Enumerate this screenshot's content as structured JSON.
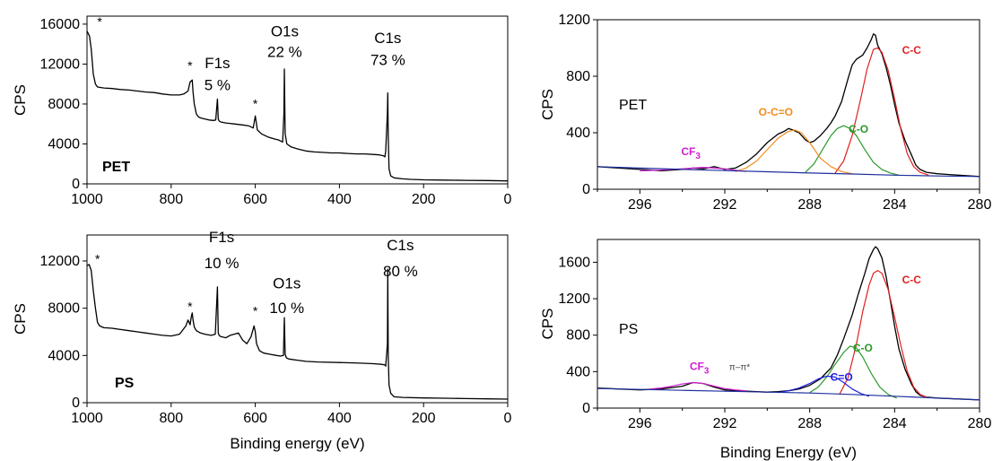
{
  "chart_data": [
    {
      "id": "survey_pet",
      "type": "line",
      "xlabel": "",
      "ylabel": "CPS",
      "xlim": [
        1000,
        0
      ],
      "ylim": [
        0,
        16800
      ],
      "xticks": [
        1000,
        800,
        600,
        400,
        200,
        0
      ],
      "yticks": [
        0,
        4000,
        8000,
        12000,
        16000
      ],
      "sample_label": "PET",
      "series": [
        {
          "color": "#000000",
          "x": [
            1000,
            994,
            990,
            985,
            980,
            975,
            960,
            940,
            920,
            900,
            880,
            860,
            840,
            820,
            800,
            780,
            770,
            760,
            755,
            750,
            748,
            745,
            740,
            735,
            730,
            720,
            710,
            700,
            694,
            690,
            688,
            686,
            682,
            670,
            650,
            630,
            615,
            605,
            600,
            595,
            585,
            570,
            555,
            545,
            535,
            532,
            531,
            529,
            525,
            515,
            500,
            480,
            460,
            440,
            420,
            400,
            380,
            360,
            340,
            320,
            305,
            295,
            292,
            290,
            286,
            285,
            284,
            282,
            278,
            270,
            250,
            230,
            200,
            150,
            100,
            50,
            0
          ],
          "y": [
            15300,
            14800,
            13500,
            11000,
            10000,
            9700,
            9600,
            9550,
            9450,
            9400,
            9300,
            9200,
            9150,
            9000,
            8900,
            8900,
            9000,
            9300,
            10200,
            10400,
            9200,
            8000,
            7000,
            6700,
            6600,
            6500,
            6400,
            6350,
            6400,
            8500,
            6500,
            6300,
            6200,
            6100,
            6000,
            5900,
            5800,
            5600,
            6800,
            5400,
            5000,
            4700,
            4500,
            4400,
            4200,
            7000,
            11500,
            5000,
            4000,
            3700,
            3500,
            3300,
            3200,
            3150,
            3100,
            3100,
            3050,
            3000,
            3000,
            2950,
            2900,
            2800,
            2700,
            3300,
            7200,
            9100,
            4800,
            1500,
            800,
            600,
            500,
            450,
            400,
            380,
            350,
            330,
            300
          ]
        }
      ],
      "annotations": [
        {
          "text": "*",
          "x": 970,
          "y": 15800
        },
        {
          "text": "*",
          "x": 755,
          "y": 11400
        },
        {
          "text": "*",
          "x": 600,
          "y": 7600
        },
        {
          "text": "F1s",
          "x": 690,
          "y": 11600
        },
        {
          "text": "5 %",
          "x": 690,
          "y": 9400
        },
        {
          "text": "O1s",
          "x": 530,
          "y": 14800
        },
        {
          "text": "22 %",
          "x": 530,
          "y": 12700
        },
        {
          "text": "C1s",
          "x": 285,
          "y": 14100
        },
        {
          "text": "73 %",
          "x": 285,
          "y": 11900
        }
      ]
    },
    {
      "id": "survey_ps",
      "type": "line",
      "xlabel": "Binding energy (eV)",
      "ylabel": "CPS",
      "xlim": [
        1000,
        0
      ],
      "ylim": [
        0,
        14200
      ],
      "xticks": [
        1000,
        800,
        600,
        400,
        200,
        0
      ],
      "yticks": [
        0,
        4000,
        8000,
        12000
      ],
      "sample_label": "PS",
      "series": [
        {
          "color": "#000000",
          "x": [
            1000,
            995,
            990,
            985,
            980,
            975,
            970,
            960,
            940,
            920,
            900,
            880,
            860,
            840,
            820,
            800,
            780,
            765,
            760,
            755,
            752,
            750,
            748,
            745,
            740,
            730,
            720,
            705,
            695,
            690,
            688,
            686,
            682,
            670,
            660,
            650,
            640,
            630,
            620,
            610,
            603,
            600,
            597,
            590,
            580,
            565,
            550,
            540,
            533,
            531,
            529,
            526,
            520,
            500,
            480,
            450,
            400,
            350,
            320,
            300,
            292,
            290,
            286,
            285,
            284,
            282,
            278,
            270,
            250,
            200,
            150,
            100,
            50,
            0
          ],
          "y": [
            11600,
            11700,
            11200,
            9500,
            8000,
            6800,
            6500,
            6350,
            6300,
            6200,
            6100,
            6000,
            5900,
            5800,
            5700,
            5650,
            5800,
            6500,
            7000,
            6600,
            7300,
            7600,
            7000,
            6400,
            6100,
            5900,
            5800,
            5700,
            5800,
            9800,
            5900,
            5700,
            5600,
            5500,
            5700,
            5800,
            5900,
            5300,
            5000,
            5600,
            6500,
            6000,
            5000,
            4400,
            4200,
            4100,
            4000,
            3950,
            4000,
            7200,
            4100,
            3800,
            3700,
            3600,
            3500,
            3450,
            3400,
            3350,
            3300,
            3250,
            3200,
            3100,
            5000,
            11300,
            4000,
            1500,
            800,
            500,
            450,
            400,
            380,
            350,
            330,
            300
          ]
        }
      ],
      "annotations": [
        {
          "text": "*",
          "x": 975,
          "y": 11800
        },
        {
          "text": "*",
          "x": 755,
          "y": 7800
        },
        {
          "text": "*",
          "x": 600,
          "y": 7400
        },
        {
          "text": "F1s",
          "x": 680,
          "y": 13600
        },
        {
          "text": "10 %",
          "x": 680,
          "y": 11400
        },
        {
          "text": "O1s",
          "x": 525,
          "y": 9700
        },
        {
          "text": "10 %",
          "x": 525,
          "y": 7600
        },
        {
          "text": "C1s",
          "x": 255,
          "y": 12900
        },
        {
          "text": "80 %",
          "x": 255,
          "y": 10700
        }
      ]
    },
    {
      "id": "c1s_pet",
      "type": "line",
      "xlabel": "",
      "ylabel": "CPS",
      "xlim": [
        298,
        280
      ],
      "ylim": [
        0,
        1200
      ],
      "xticks": [
        296,
        292,
        288,
        284,
        280
      ],
      "yticks": [
        0,
        400,
        800,
        1200
      ],
      "sample_label": "PET",
      "series": [
        {
          "color": "#000000",
          "x": [
            298,
            297,
            296,
            295,
            294,
            293.5,
            293,
            292.5,
            292,
            291.5,
            291,
            290.5,
            290,
            289.5,
            289.2,
            289,
            288.8,
            288.5,
            288.2,
            288,
            287.8,
            287.5,
            287.2,
            287,
            286.8,
            286.5,
            286.2,
            286,
            285.8,
            285.5,
            285.3,
            285.1,
            285,
            284.9,
            284.8,
            284.6,
            284.4,
            284.2,
            284,
            283.8,
            283.5,
            283.2,
            283,
            282.8,
            282.5,
            282,
            281.5,
            281,
            280.5,
            280
          ],
          "y": [
            160,
            150,
            140,
            130,
            140,
            150,
            145,
            160,
            140,
            150,
            190,
            250,
            330,
            390,
            410,
            430,
            420,
            400,
            350,
            330,
            340,
            380,
            430,
            470,
            520,
            620,
            780,
            880,
            920,
            950,
            1000,
            1060,
            1100,
            1090,
            1020,
            960,
            860,
            740,
            600,
            470,
            340,
            240,
            170,
            140,
            120,
            110,
            105,
            100,
            95,
            90
          ]
        },
        {
          "color": "#e02020",
          "x": [
            286.8,
            286.4,
            286,
            285.6,
            285.3,
            285,
            284.8,
            284.6,
            284.3,
            284,
            283.7,
            283.4,
            283.1,
            282.8,
            282.4
          ],
          "y": [
            115,
            200,
            380,
            640,
            850,
            990,
            1000,
            970,
            840,
            640,
            420,
            250,
            160,
            120,
            100
          ]
        },
        {
          "color": "#2a9a2a",
          "x": [
            288.2,
            287.8,
            287.4,
            287,
            286.7,
            286.4,
            286.1,
            285.8,
            285.4,
            285,
            284.6,
            284.2,
            283.8
          ],
          "y": [
            120,
            180,
            280,
            380,
            430,
            450,
            430,
            380,
            280,
            190,
            140,
            115,
            100
          ]
        },
        {
          "color": "#f28c1e",
          "x": [
            291.5,
            291,
            290.5,
            290,
            289.5,
            289,
            288.7,
            288.4,
            288,
            287.5,
            287,
            286.5,
            286
          ],
          "y": [
            125,
            150,
            200,
            280,
            360,
            410,
            420,
            400,
            330,
            220,
            160,
            125,
            110
          ]
        },
        {
          "color": "#d020d0",
          "x": [
            296,
            295,
            294.5,
            294,
            293.5,
            293,
            292.5,
            292,
            291.5,
            291
          ],
          "y": [
            130,
            135,
            140,
            145,
            150,
            155,
            150,
            145,
            135,
            125
          ]
        },
        {
          "color": "#1f2f9f",
          "x": [
            298,
            296,
            294,
            292,
            290,
            288,
            286,
            284,
            282,
            280
          ],
          "y": [
            160,
            150,
            140,
            132,
            124,
            115,
            108,
            100,
            94,
            90
          ]
        }
      ],
      "annotations": [
        {
          "text": "C-C",
          "color": "#e02020",
          "x": 283.2,
          "y": 960
        },
        {
          "text": "C-O",
          "color": "#2a9a2a",
          "x": 285.7,
          "y": 400
        },
        {
          "text": "O-C=O",
          "color": "#f28c1e",
          "x": 289.6,
          "y": 520
        },
        {
          "text": "CF",
          "sub": "3",
          "color": "#d020d0",
          "x": 293.6,
          "y": 240
        }
      ]
    },
    {
      "id": "c1s_ps",
      "type": "line",
      "xlabel": "Binding Energy (eV)",
      "ylabel": "CPS",
      "xlim": [
        298,
        280
      ],
      "ylim": [
        0,
        1850
      ],
      "xticks": [
        296,
        292,
        288,
        284,
        280
      ],
      "yticks": [
        0,
        400,
        800,
        1200,
        1600
      ],
      "sample_label": "PS",
      "series": [
        {
          "color": "#000000",
          "x": [
            298,
            297,
            296,
            295,
            294,
            293.5,
            293,
            292.5,
            292,
            291.5,
            291,
            290.5,
            290,
            289.5,
            289,
            288.5,
            288,
            287.5,
            287,
            286.7,
            286.4,
            286,
            285.7,
            285.4,
            285.2,
            285,
            284.9,
            284.8,
            284.6,
            284.4,
            284.2,
            284,
            283.8,
            283.5,
            283.2,
            283,
            282.8,
            282.5,
            282,
            281.5,
            281,
            280.5,
            280
          ],
          "y": [
            220,
            210,
            200,
            210,
            240,
            280,
            270,
            230,
            200,
            190,
            185,
            180,
            175,
            180,
            190,
            210,
            250,
            320,
            440,
            580,
            760,
            1020,
            1260,
            1480,
            1640,
            1740,
            1770,
            1750,
            1650,
            1440,
            1180,
            900,
            650,
            420,
            260,
            180,
            140,
            120,
            110,
            105,
            100,
            95,
            90
          ]
        },
        {
          "color": "#e02020",
          "x": [
            286.6,
            286.2,
            285.8,
            285.5,
            285.2,
            285,
            284.8,
            284.6,
            284.3,
            284,
            283.7,
            283.4,
            283.1,
            282.8,
            282.4
          ],
          "y": [
            150,
            330,
            700,
            1060,
            1350,
            1480,
            1510,
            1480,
            1300,
            1000,
            680,
            400,
            230,
            150,
            110
          ]
        },
        {
          "color": "#2a9a2a",
          "x": [
            288,
            287.6,
            287.2,
            286.8,
            286.4,
            286.1,
            285.8,
            285.5,
            285.1,
            284.7,
            284.3,
            283.9
          ],
          "y": [
            170,
            230,
            340,
            480,
            610,
            680,
            660,
            560,
            380,
            230,
            150,
            110
          ]
        },
        {
          "color": "#2020e0",
          "x": [
            289.5,
            289,
            288.5,
            288,
            287.6,
            287.2,
            286.8,
            286.4,
            286,
            285.6,
            285.2
          ],
          "y": [
            170,
            190,
            220,
            270,
            320,
            350,
            340,
            280,
            210,
            160,
            130
          ]
        },
        {
          "color": "#d020d0",
          "x": [
            295.5,
            295,
            294.5,
            294,
            293.5,
            293,
            292.5,
            292,
            291.5,
            291
          ],
          "y": [
            210,
            220,
            240,
            265,
            280,
            270,
            240,
            215,
            200,
            190
          ]
        },
        {
          "color": "#1f2f9f",
          "x": [
            298,
            296,
            294,
            292,
            290,
            288,
            286,
            284,
            282,
            280
          ],
          "y": [
            215,
            205,
            195,
            185,
            175,
            165,
            150,
            130,
            110,
            90
          ]
        }
      ],
      "annotations": [
        {
          "text": "C-C",
          "color": "#e02020",
          "x": 283.2,
          "y": 1370
        },
        {
          "text": "C-O",
          "color": "#2a9a2a",
          "x": 285.5,
          "y": 620
        },
        {
          "text": "C=O",
          "color": "#2020e0",
          "x": 286.5,
          "y": 300
        },
        {
          "text": "CF",
          "sub": "3",
          "color": "#d020d0",
          "x": 293.2,
          "y": 420
        },
        {
          "text": "π–π*",
          "color": "#444444",
          "x": 291.3,
          "y": 420
        }
      ]
    }
  ]
}
